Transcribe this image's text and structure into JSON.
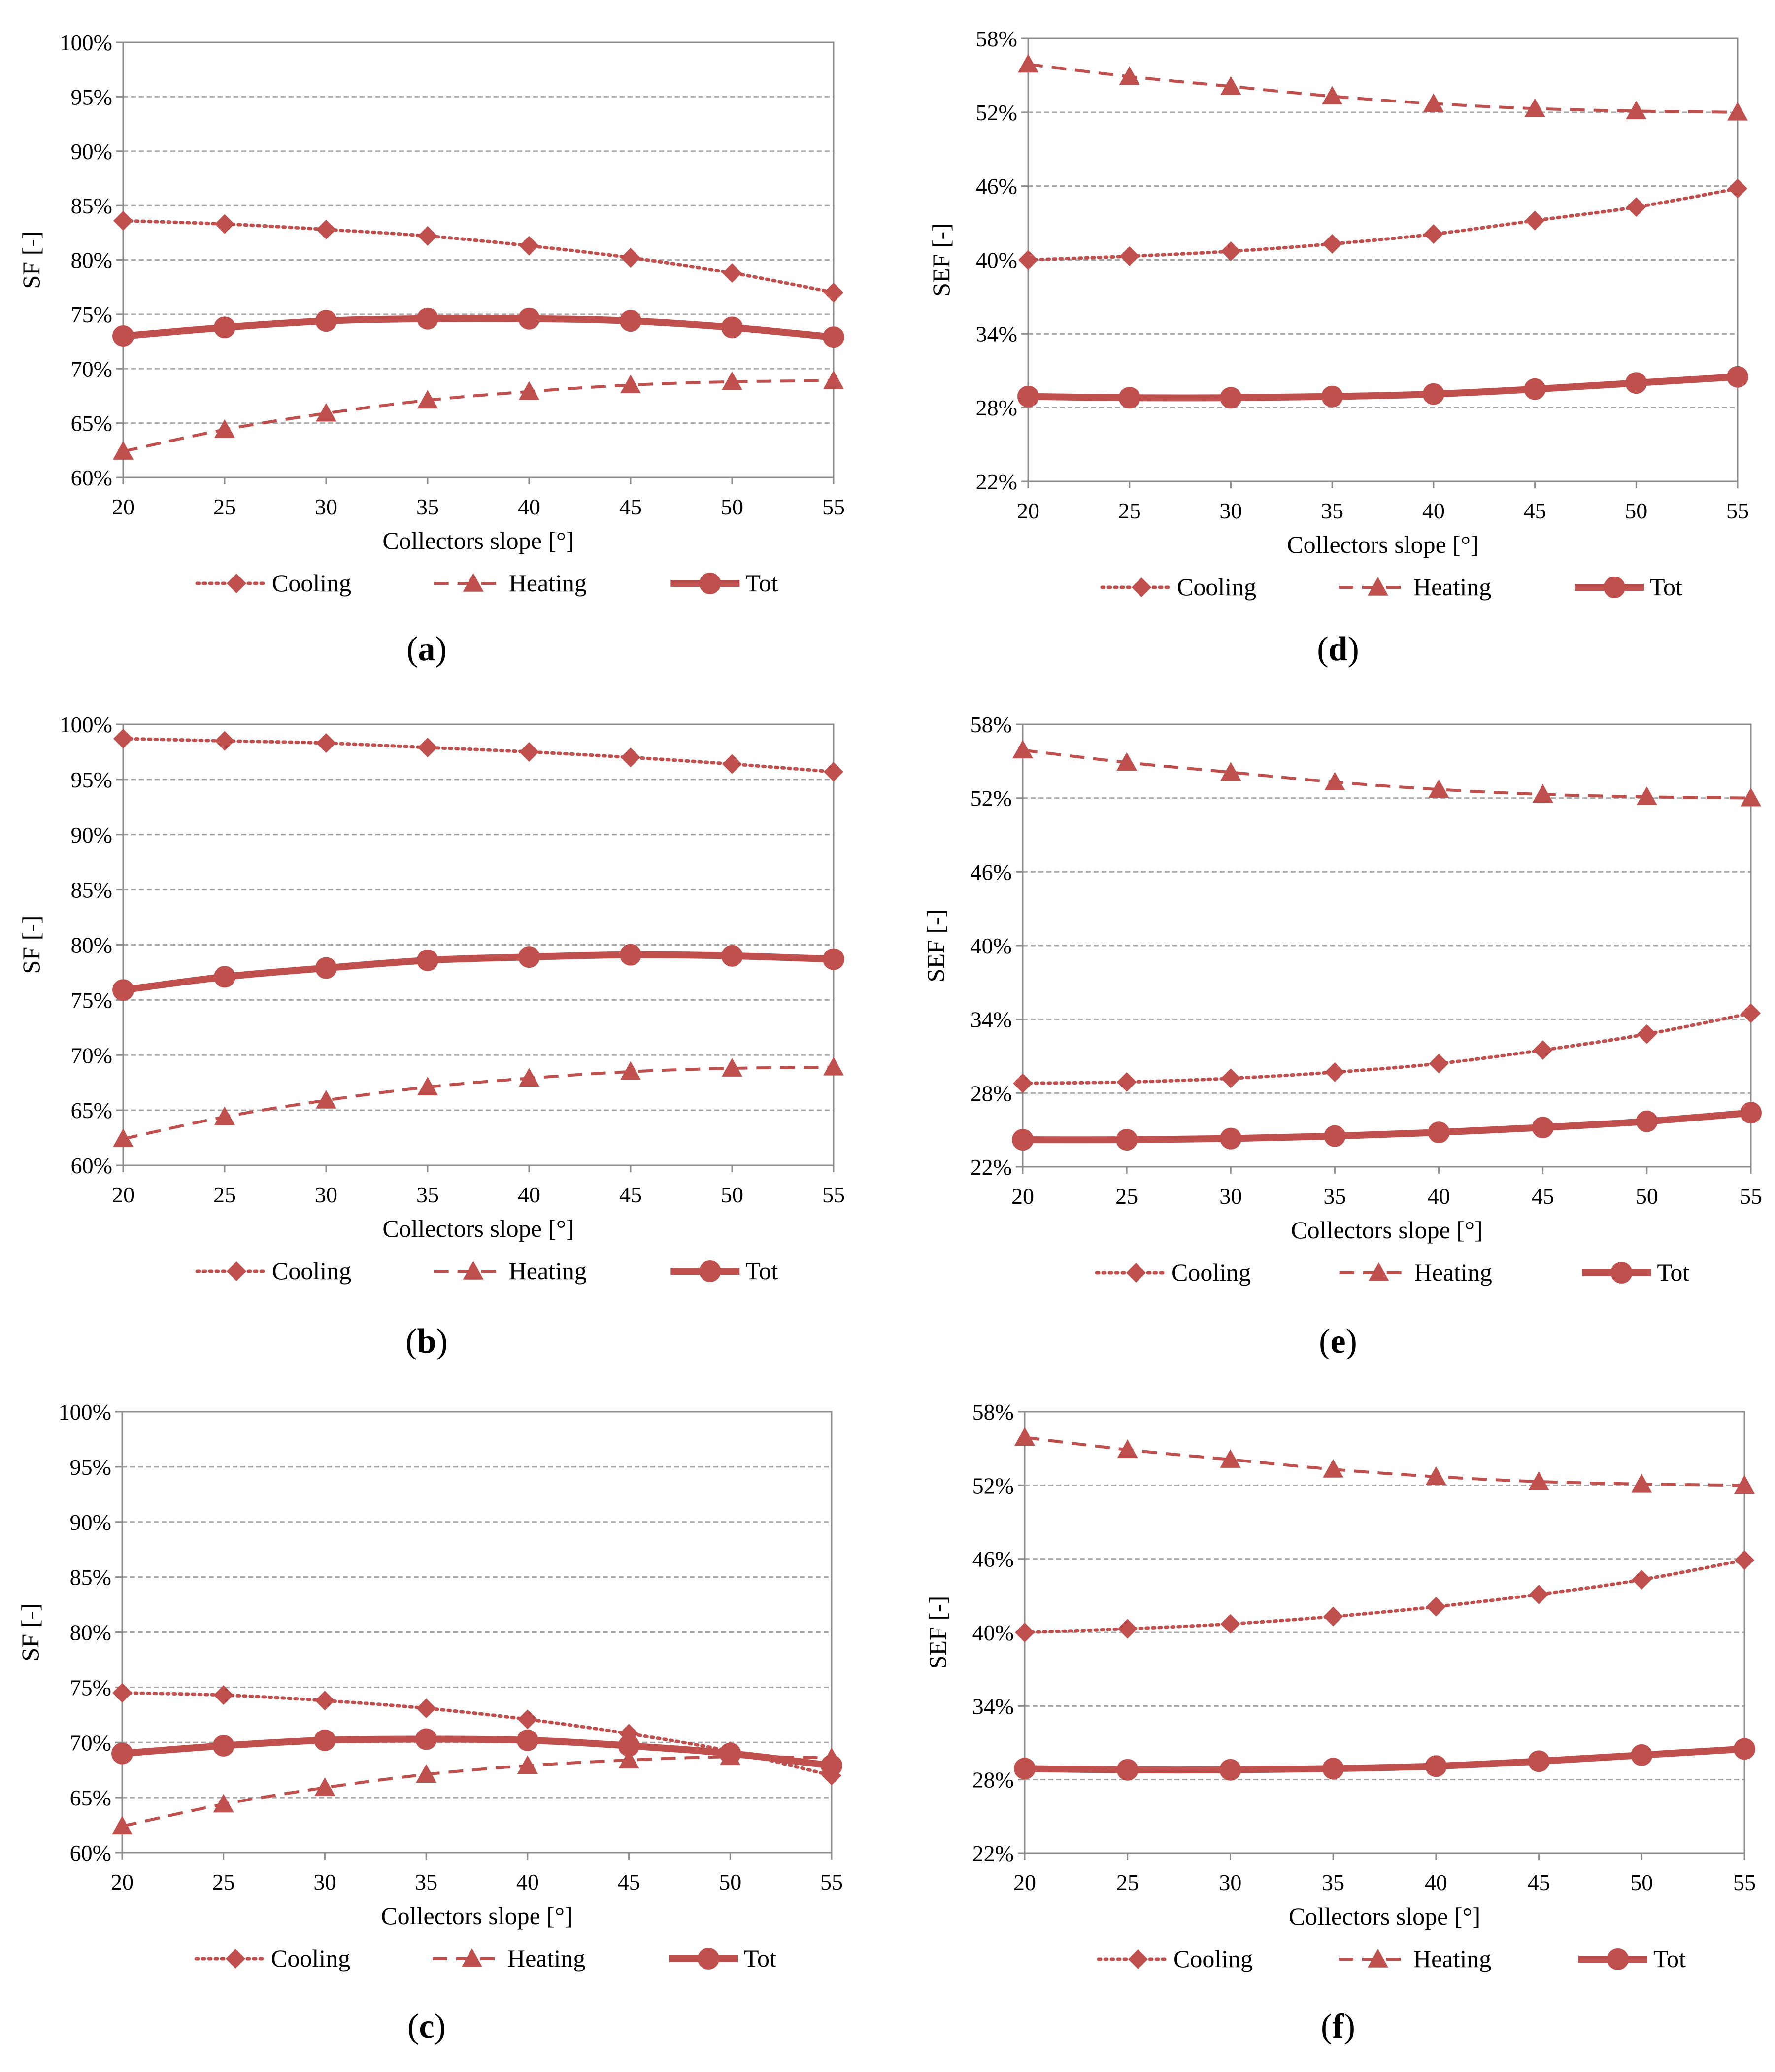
{
  "figure": {
    "colors": {
      "series": "#c0504d",
      "grid": "#a6a6a6",
      "axis": "#8c8c8c"
    }
  },
  "chart_data": [
    {
      "id": "a",
      "label": "a",
      "type": "line",
      "x": [
        20,
        25,
        30,
        35,
        40,
        45,
        50,
        55
      ],
      "xtick_labels": [
        "20",
        "25",
        "30",
        "35",
        "40",
        "45",
        "50",
        "55"
      ],
      "ylim": [
        60,
        100
      ],
      "ytick_labels": [
        "60%",
        "65%",
        "70%",
        "75%",
        "80%",
        "85%",
        "90%",
        "95%",
        "100%"
      ],
      "yticks": [
        60,
        65,
        70,
        75,
        80,
        85,
        90,
        95,
        100
      ],
      "xlabel": "Collectors slope [°]",
      "ylabel": "SF [-]",
      "series": [
        {
          "name": "Cooling",
          "style": "dotted",
          "marker": "diamond",
          "values": [
            83.6,
            83.3,
            82.8,
            82.2,
            81.3,
            80.2,
            78.8,
            77.0
          ]
        },
        {
          "name": "Heating",
          "style": "dashed",
          "marker": "triangle",
          "values": [
            62.4,
            64.4,
            65.9,
            67.1,
            67.9,
            68.5,
            68.8,
            68.9
          ]
        },
        {
          "name": "Tot",
          "style": "solid",
          "marker": "circle",
          "values": [
            73.0,
            73.8,
            74.4,
            74.6,
            74.6,
            74.4,
            73.8,
            72.9
          ]
        }
      ]
    },
    {
      "id": "b",
      "label": "b",
      "type": "line",
      "x": [
        20,
        25,
        30,
        35,
        40,
        45,
        50,
        55
      ],
      "xtick_labels": [
        "20",
        "25",
        "30",
        "35",
        "40",
        "45",
        "50",
        "55"
      ],
      "ylim": [
        60,
        100
      ],
      "ytick_labels": [
        "60%",
        "65%",
        "70%",
        "75%",
        "80%",
        "85%",
        "90%",
        "95%",
        "100%"
      ],
      "yticks": [
        60,
        65,
        70,
        75,
        80,
        85,
        90,
        95,
        100
      ],
      "xlabel": "Collectors slope [°]",
      "ylabel": "SF [-]",
      "series": [
        {
          "name": "Cooling",
          "style": "dotted",
          "marker": "diamond",
          "values": [
            98.7,
            98.5,
            98.3,
            97.9,
            97.5,
            97.0,
            96.4,
            95.7
          ]
        },
        {
          "name": "Heating",
          "style": "dashed",
          "marker": "triangle",
          "values": [
            62.4,
            64.4,
            65.9,
            67.1,
            67.9,
            68.5,
            68.8,
            68.9
          ]
        },
        {
          "name": "Tot",
          "style": "solid",
          "marker": "circle",
          "values": [
            75.9,
            77.1,
            77.9,
            78.6,
            78.9,
            79.1,
            79.0,
            78.7
          ]
        }
      ]
    },
    {
      "id": "c",
      "label": "c",
      "type": "line",
      "x": [
        20,
        25,
        30,
        35,
        40,
        45,
        50,
        55
      ],
      "xtick_labels": [
        "20",
        "25",
        "30",
        "35",
        "40",
        "45",
        "50",
        "55"
      ],
      "ylim": [
        60,
        100
      ],
      "ytick_labels": [
        "60%",
        "65%",
        "70%",
        "75%",
        "80%",
        "85%",
        "90%",
        "95%",
        "100%"
      ],
      "yticks": [
        60,
        65,
        70,
        75,
        80,
        85,
        90,
        95,
        100
      ],
      "xlabel": "Collectors slope [°]",
      "ylabel": "SF [-]",
      "series": [
        {
          "name": "Cooling",
          "style": "dotted",
          "marker": "diamond",
          "values": [
            74.5,
            74.3,
            73.8,
            73.1,
            72.1,
            70.8,
            69.2,
            67.0
          ]
        },
        {
          "name": "Heating",
          "style": "dashed",
          "marker": "triangle",
          "values": [
            62.4,
            64.4,
            65.9,
            67.1,
            67.9,
            68.4,
            68.7,
            68.6
          ]
        },
        {
          "name": "Tot",
          "style": "solid",
          "marker": "circle",
          "values": [
            69.0,
            69.7,
            70.2,
            70.3,
            70.2,
            69.7,
            69.0,
            67.9
          ]
        }
      ]
    },
    {
      "id": "d",
      "label": "d",
      "type": "line",
      "x": [
        20,
        25,
        30,
        35,
        40,
        45,
        50,
        55
      ],
      "xtick_labels": [
        "20",
        "25",
        "30",
        "35",
        "40",
        "45",
        "50",
        "55"
      ],
      "ylim": [
        22,
        58
      ],
      "ytick_labels": [
        "22%",
        "28%",
        "34%",
        "40%",
        "46%",
        "52%",
        "58%"
      ],
      "yticks": [
        22,
        28,
        34,
        40,
        46,
        52,
        58
      ],
      "xlabel": "Collectors slope [°]",
      "ylabel": "SEF [-]",
      "series": [
        {
          "name": "Cooling",
          "style": "dotted",
          "marker": "diamond",
          "values": [
            40.0,
            40.3,
            40.7,
            41.3,
            42.1,
            43.2,
            44.3,
            45.8
          ]
        },
        {
          "name": "Heating",
          "style": "dashed",
          "marker": "triangle",
          "values": [
            55.9,
            54.9,
            54.1,
            53.3,
            52.7,
            52.3,
            52.1,
            52.0
          ]
        },
        {
          "name": "Tot",
          "style": "solid",
          "marker": "circle",
          "values": [
            28.9,
            28.8,
            28.8,
            28.9,
            29.1,
            29.5,
            30.0,
            30.5
          ]
        }
      ]
    },
    {
      "id": "e",
      "label": "e",
      "type": "line",
      "x": [
        20,
        25,
        30,
        35,
        40,
        45,
        50,
        55
      ],
      "xtick_labels": [
        "20",
        "25",
        "30",
        "35",
        "40",
        "45",
        "50",
        "55"
      ],
      "ylim": [
        22,
        58
      ],
      "ytick_labels": [
        "22%",
        "28%",
        "34%",
        "40%",
        "46%",
        "52%",
        "58%"
      ],
      "yticks": [
        22,
        28,
        34,
        40,
        46,
        52,
        58
      ],
      "xlabel": "Collectors slope [°]",
      "ylabel": "SEF [-]",
      "series": [
        {
          "name": "Cooling",
          "style": "dotted",
          "marker": "diamond",
          "values": [
            28.8,
            28.9,
            29.2,
            29.7,
            30.4,
            31.5,
            32.8,
            34.5
          ]
        },
        {
          "name": "Heating",
          "style": "dashed",
          "marker": "triangle",
          "values": [
            55.9,
            54.9,
            54.1,
            53.3,
            52.7,
            52.3,
            52.1,
            52.0
          ]
        },
        {
          "name": "Tot",
          "style": "solid",
          "marker": "circle",
          "values": [
            24.2,
            24.2,
            24.3,
            24.5,
            24.8,
            25.2,
            25.7,
            26.4
          ]
        }
      ]
    },
    {
      "id": "f",
      "label": "f",
      "type": "line",
      "x": [
        20,
        25,
        30,
        35,
        40,
        45,
        50,
        55
      ],
      "xtick_labels": [
        "20",
        "25",
        "30",
        "35",
        "40",
        "45",
        "50",
        "55"
      ],
      "ylim": [
        22,
        58
      ],
      "ytick_labels": [
        "22%",
        "28%",
        "34%",
        "40%",
        "46%",
        "52%",
        "58%"
      ],
      "yticks": [
        22,
        28,
        34,
        40,
        46,
        52,
        58
      ],
      "xlabel": "Collectors slope [°]",
      "ylabel": "SEF [-]",
      "series": [
        {
          "name": "Cooling",
          "style": "dotted",
          "marker": "diamond",
          "values": [
            40.0,
            40.3,
            40.7,
            41.3,
            42.1,
            43.1,
            44.3,
            45.9
          ]
        },
        {
          "name": "Heating",
          "style": "dashed",
          "marker": "triangle",
          "values": [
            55.9,
            54.9,
            54.1,
            53.3,
            52.7,
            52.3,
            52.1,
            52.0
          ]
        },
        {
          "name": "Tot",
          "style": "solid",
          "marker": "circle",
          "values": [
            28.9,
            28.8,
            28.8,
            28.9,
            29.1,
            29.5,
            30.0,
            30.5
          ]
        }
      ]
    }
  ]
}
